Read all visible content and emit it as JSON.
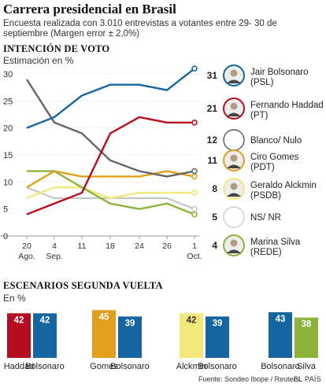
{
  "header": {
    "title": "Carrera presidencial en Brasil",
    "subtitle": "Encuesta realizada con 3.010 entrevistas a votantes entre 29- 30 de septiembre (Margen error ± 2,0%)"
  },
  "first_round": {
    "section_title": "INTENCIÓN DE VOTO",
    "unit_label": "Estimación en %"
  },
  "second_round": {
    "section_title": "ESCENARIOS SEGUNDA VUELTA",
    "unit_label": "En %"
  },
  "footer": {
    "source": "Fuente: Sondeo Ibope / Reuters.",
    "brand": "EL PAÍS"
  },
  "chart_data": [
    {
      "type": "line",
      "title": "INTENCIÓN DE VOTO",
      "ylabel": "Estimación en %",
      "x": [
        "20 Ago.",
        "4 Sep.",
        "11",
        "18",
        "24",
        "26",
        "1 Oct."
      ],
      "ylim": [
        0,
        30
      ],
      "yticks": [
        0,
        5,
        10,
        15,
        20,
        25,
        30
      ],
      "grid": true,
      "legend": "right",
      "series": [
        {
          "name": "Jair Bolsonaro",
          "party": "(PSL)",
          "final": "31",
          "color": "#1565a0",
          "icon": "bolsonaro-portrait-icon",
          "values": [
            20,
            22,
            26,
            28,
            28,
            27,
            31
          ]
        },
        {
          "name": "Fernando Haddad",
          "party": "(PT)",
          "final": "21",
          "color": "#b50d1f",
          "icon": "haddad-portrait-icon",
          "values": [
            4,
            6,
            8,
            19,
            22,
            21,
            21
          ]
        },
        {
          "name": "Blanco/ Nulo",
          "party": "",
          "final": "12",
          "color": "#666666",
          "icon": "blank-vote-circle-icon",
          "values": [
            29,
            21,
            19,
            14,
            12,
            11,
            12
          ]
        },
        {
          "name": "Ciro Gomes",
          "party": "(PDT)",
          "final": "11",
          "color": "#e0a01b",
          "icon": "gomes-portrait-icon",
          "values": [
            9,
            12,
            11,
            11,
            11,
            12,
            11
          ]
        },
        {
          "name": "Geraldo Alckmin",
          "party": "(PSDB)",
          "final": "8",
          "color": "#f2e77a",
          "icon": "alckmin-portrait-icon",
          "values": [
            7,
            9,
            9,
            7,
            8,
            8,
            8
          ]
        },
        {
          "name": "NS/ NR",
          "party": "",
          "final": "5",
          "color": "#c8c8c8",
          "icon": "undecided-circle-icon",
          "values": [
            9,
            7,
            7,
            7,
            7,
            7,
            5
          ]
        },
        {
          "name": "Marina Silva",
          "party": "(REDE)",
          "final": "4",
          "color": "#8db33a",
          "icon": "silva-portrait-icon",
          "values": [
            12,
            12,
            9,
            6,
            5,
            6,
            4
          ]
        }
      ]
    },
    {
      "type": "bar",
      "title": "ESCENARIOS SEGUNDA VUELTA",
      "ylabel": "En %",
      "scenarios": [
        {
          "bars": [
            {
              "name": "Haddad",
              "value": 42,
              "color": "#b50d1f"
            },
            {
              "name": "Bolsonaro",
              "value": 42,
              "color": "#1565a0"
            }
          ]
        },
        {
          "bars": [
            {
              "name": "Gomes",
              "value": 45,
              "color": "#e0a01b"
            },
            {
              "name": "Bolsonaro",
              "value": 39,
              "color": "#1565a0"
            }
          ]
        },
        {
          "bars": [
            {
              "name": "Alckmin",
              "value": 42,
              "color": "#f2e77a"
            },
            {
              "name": "Bolsonaro",
              "value": 39,
              "color": "#1565a0"
            }
          ]
        },
        {
          "bars": [
            {
              "name": "Bolsonaro",
              "value": 43,
              "color": "#1565a0"
            },
            {
              "name": "Silva",
              "value": 38,
              "color": "#8db33a"
            }
          ]
        }
      ]
    }
  ]
}
